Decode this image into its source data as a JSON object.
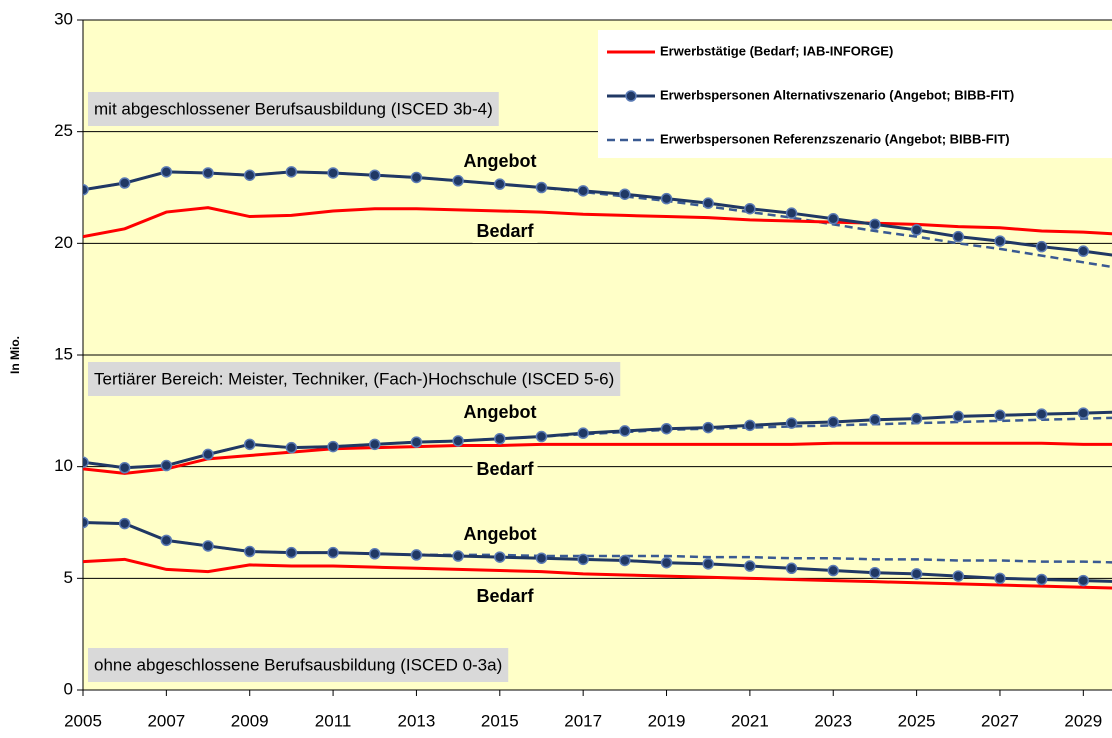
{
  "chart_data": {
    "type": "line",
    "ylabel": "In Mio.",
    "x": [
      2005,
      2006,
      2007,
      2008,
      2009,
      2010,
      2011,
      2012,
      2013,
      2014,
      2015,
      2016,
      2017,
      2018,
      2019,
      2020,
      2021,
      2022,
      2023,
      2024,
      2025,
      2026,
      2027,
      2028,
      2029,
      2030
    ],
    "xlim": [
      2005,
      2030
    ],
    "xticks": [
      2005,
      2007,
      2009,
      2011,
      2013,
      2015,
      2017,
      2019,
      2021,
      2023,
      2025,
      2027,
      2029
    ],
    "ylim": [
      0,
      30
    ],
    "yticks": [
      0,
      5,
      10,
      15,
      20,
      25,
      30
    ],
    "grid": true,
    "background": "#ffffc8",
    "legend": [
      {
        "name": "Erwerbstätige (Bedarf; IAB-INFORGE)",
        "color": "#ff0000",
        "style": "solid"
      },
      {
        "name": "Erwerbspersonen Alternativszenario (Angebot; BIBB-FIT)",
        "color": "#203864",
        "style": "marker"
      },
      {
        "name": "Erwerbspersonen Referenzszenario (Angebot; BIBB-FIT)",
        "color": "#3a5a92",
        "style": "dashed"
      }
    ],
    "groups": [
      {
        "label": "mit abgeschlossener Berufsausbildung (ISCED 3b-4)",
        "annotations": [
          "Angebot",
          "Bedarf"
        ],
        "series": [
          {
            "values": [
              20.3,
              20.65,
              21.4,
              21.6,
              21.2,
              21.25,
              21.45,
              21.55,
              21.55,
              21.5,
              21.45,
              21.4,
              21.3,
              21.25,
              21.2,
              21.15,
              21.05,
              21.0,
              20.95,
              20.9,
              20.85,
              20.75,
              20.7,
              20.55,
              20.5,
              20.4
            ]
          },
          {
            "values": [
              22.4,
              22.7,
              23.2,
              23.15,
              23.05,
              23.2,
              23.15,
              23.05,
              22.95,
              22.8,
              22.65,
              22.5,
              22.35,
              22.2,
              22.0,
              21.8,
              21.55,
              21.35,
              21.1,
              20.85,
              20.6,
              20.3,
              20.1,
              19.85,
              19.65,
              19.4
            ]
          },
          {
            "values": [
              22.4,
              22.7,
              23.2,
              23.15,
              23.05,
              23.2,
              23.15,
              23.05,
              22.95,
              22.8,
              22.65,
              22.5,
              22.3,
              22.1,
              21.9,
              21.65,
              21.4,
              21.15,
              20.85,
              20.55,
              20.3,
              20.0,
              19.75,
              19.45,
              19.15,
              18.85
            ]
          }
        ]
      },
      {
        "label": "Tertiärer Bereich: Meister, Techniker, (Fach-)Hochschule (ISCED 5-6)",
        "annotations": [
          "Angebot",
          "Bedarf"
        ],
        "series": [
          {
            "values": [
              9.9,
              9.7,
              9.9,
              10.35,
              10.5,
              10.65,
              10.8,
              10.85,
              10.9,
              10.95,
              10.95,
              11.0,
              11.0,
              11.0,
              11.0,
              11.0,
              11.0,
              11.0,
              11.05,
              11.05,
              11.05,
              11.05,
              11.05,
              11.05,
              11.0,
              11.0
            ]
          },
          {
            "values": [
              10.2,
              9.95,
              10.05,
              10.55,
              11.0,
              10.85,
              10.9,
              11.0,
              11.1,
              11.15,
              11.25,
              11.35,
              11.5,
              11.6,
              11.7,
              11.75,
              11.85,
              11.95,
              12.0,
              12.1,
              12.15,
              12.25,
              12.3,
              12.35,
              12.4,
              12.45
            ]
          },
          {
            "values": [
              10.2,
              9.95,
              10.05,
              10.55,
              11.0,
              10.85,
              10.9,
              11.0,
              11.1,
              11.15,
              11.25,
              11.35,
              11.45,
              11.55,
              11.65,
              11.7,
              11.75,
              11.8,
              11.85,
              11.9,
              11.95,
              12.0,
              12.05,
              12.1,
              12.15,
              12.2
            ]
          }
        ]
      },
      {
        "label": "ohne abgeschlossene Berufsausbildung (ISCED 0-3a)",
        "annotations": [
          "Angebot",
          "Bedarf"
        ],
        "series": [
          {
            "values": [
              5.75,
              5.85,
              5.4,
              5.3,
              5.6,
              5.55,
              5.55,
              5.5,
              5.45,
              5.4,
              5.35,
              5.3,
              5.2,
              5.15,
              5.1,
              5.05,
              5.0,
              4.95,
              4.9,
              4.85,
              4.8,
              4.75,
              4.7,
              4.65,
              4.6,
              4.55
            ]
          },
          {
            "values": [
              7.5,
              7.45,
              6.7,
              6.45,
              6.2,
              6.15,
              6.15,
              6.1,
              6.05,
              6.0,
              5.95,
              5.9,
              5.85,
              5.8,
              5.7,
              5.65,
              5.55,
              5.45,
              5.35,
              5.25,
              5.2,
              5.1,
              5.0,
              4.95,
              4.9,
              4.85
            ]
          },
          {
            "values": [
              7.5,
              7.45,
              6.7,
              6.45,
              6.2,
              6.15,
              6.15,
              6.1,
              6.05,
              6.05,
              6.05,
              6.0,
              6.0,
              6.0,
              6.0,
              5.95,
              5.95,
              5.9,
              5.9,
              5.85,
              5.85,
              5.8,
              5.8,
              5.75,
              5.75,
              5.7
            ]
          }
        ]
      }
    ]
  }
}
